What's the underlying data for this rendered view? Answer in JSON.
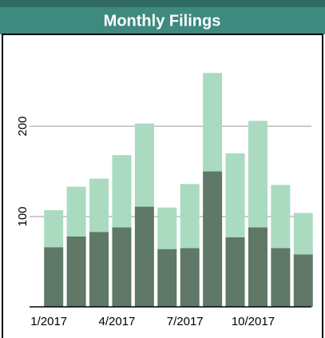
{
  "chart_data": {
    "type": "stacked_bar",
    "title": "Monthly Filings",
    "categories": [
      "1/2017",
      null,
      null,
      "4/2017",
      null,
      null,
      "7/2017",
      null,
      null,
      "10/2017",
      null,
      null
    ],
    "series": [
      {
        "color": "#5f7868",
        "values": [
          66,
          78,
          83,
          88,
          111,
          64,
          65,
          150,
          77,
          88,
          65,
          58
        ]
      },
      {
        "color": "#aadbc1",
        "values": [
          41,
          55,
          59,
          80,
          92,
          46,
          71,
          109,
          93,
          118,
          70,
          46
        ]
      }
    ],
    "ylim": [
      0,
      300
    ],
    "yticks": [
      100,
      200
    ],
    "grid": true
  }
}
